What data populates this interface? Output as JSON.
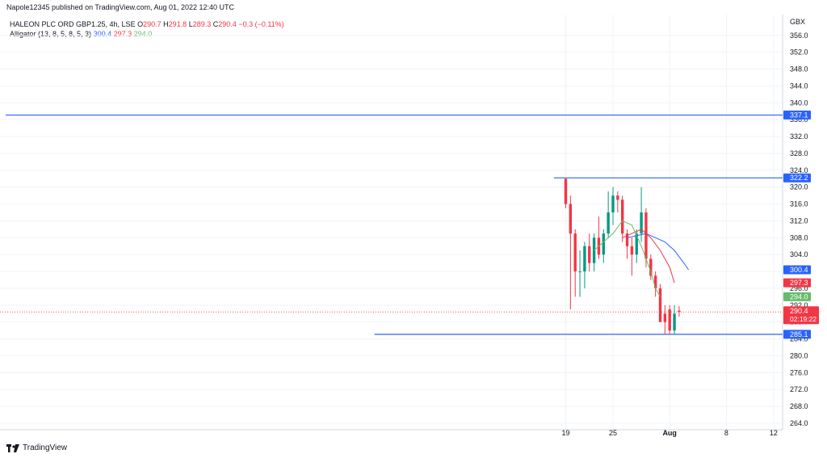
{
  "header": {
    "published": "Napole12345 published on TradingView.com, Aug 01, 2022 12:40 UTC"
  },
  "legend": {
    "symbol": "HALEON PLC ORD GBP1.25, 4h, LSE",
    "ohlc": {
      "o_label": "O",
      "o": "290.7",
      "h_label": "H",
      "h": "291.8",
      "l_label": "L",
      "l": "289.3",
      "c_label": "C",
      "c": "290.4",
      "change": "−0.3 (−0.11%)"
    },
    "indicator": "Alligator (13, 8, 5, 8, 5, 3)",
    "jaw": "300.4",
    "teeth": "297.3",
    "lips": "294.0"
  },
  "footer": {
    "brand": "TradingView"
  },
  "colors": {
    "up": "#089981",
    "down": "#f23645",
    "jaw": "#2962ff",
    "teeth": "#f23645",
    "lips": "#66bb6a",
    "hline": "#2962ff",
    "grid": "#f0f3fa"
  },
  "chart_data": {
    "type": "candlestick",
    "currency": "GBX",
    "ylim": [
      264,
      358
    ],
    "y_ticks": [
      "356.0",
      "352.0",
      "348.0",
      "344.0",
      "340.0",
      "336.0",
      "332.0",
      "328.0",
      "324.0",
      "320.0",
      "316.0",
      "312.0",
      "308.0",
      "304.0",
      "300.0",
      "296.0",
      "292.0",
      "288.0",
      "284.0",
      "280.0",
      "276.0",
      "272.0",
      "268.0",
      "264.0"
    ],
    "x_ticks": [
      {
        "label": "19",
        "idx": 0
      },
      {
        "label": "25",
        "idx": 10
      },
      {
        "label": "Aug",
        "idx": 22
      },
      {
        "label": "8",
        "idx": 34
      },
      {
        "label": "12",
        "idx": 44
      }
    ],
    "candles": [
      {
        "o": 322,
        "h": 322,
        "l": 315,
        "c": 316
      },
      {
        "o": 316,
        "h": 318,
        "l": 291,
        "c": 309
      },
      {
        "o": 309,
        "h": 310,
        "l": 294,
        "c": 300
      },
      {
        "o": 300,
        "h": 305,
        "l": 294,
        "c": 300
      },
      {
        "o": 300,
        "h": 307,
        "l": 296,
        "c": 306
      },
      {
        "o": 306,
        "h": 309,
        "l": 300,
        "c": 302
      },
      {
        "o": 302,
        "h": 309,
        "l": 300,
        "c": 308
      },
      {
        "o": 308,
        "h": 313,
        "l": 303,
        "c": 304
      },
      {
        "o": 304,
        "h": 310,
        "l": 302,
        "c": 309
      },
      {
        "o": 309,
        "h": 319,
        "l": 308,
        "c": 314
      },
      {
        "o": 314,
        "h": 320,
        "l": 311,
        "c": 318
      },
      {
        "o": 318,
        "h": 319,
        "l": 314,
        "c": 317
      },
      {
        "o": 317,
        "h": 318,
        "l": 307,
        "c": 309
      },
      {
        "o": 309,
        "h": 310,
        "l": 303,
        "c": 306
      },
      {
        "o": 306,
        "h": 308,
        "l": 299,
        "c": 304
      },
      {
        "o": 304,
        "h": 310,
        "l": 302,
        "c": 309
      },
      {
        "o": 309,
        "h": 320,
        "l": 307,
        "c": 314
      },
      {
        "o": 314,
        "h": 315,
        "l": 301,
        "c": 303
      },
      {
        "o": 303,
        "h": 304,
        "l": 298,
        "c": 299
      },
      {
        "o": 299,
        "h": 300,
        "l": 294,
        "c": 296
      },
      {
        "o": 296,
        "h": 297,
        "l": 288,
        "c": 288
      },
      {
        "o": 290,
        "h": 292,
        "l": 285,
        "c": 288
      },
      {
        "o": 291,
        "h": 292,
        "l": 285,
        "c": 286
      },
      {
        "o": 286,
        "h": 292,
        "l": 285,
        "c": 290
      },
      {
        "o": 290.7,
        "h": 291.8,
        "l": 289.3,
        "c": 290.4
      }
    ],
    "jaw_series": [
      {
        "i": 13,
        "v": 308
      },
      {
        "i": 15,
        "v": 308.5
      },
      {
        "i": 17,
        "v": 309
      },
      {
        "i": 19,
        "v": 308
      },
      {
        "i": 21,
        "v": 307
      },
      {
        "i": 23,
        "v": 305
      },
      {
        "i": 25,
        "v": 302
      },
      {
        "i": 26,
        "v": 300.4
      }
    ],
    "teeth_series": [
      {
        "i": 12,
        "v": 308
      },
      {
        "i": 14,
        "v": 309
      },
      {
        "i": 16,
        "v": 310
      },
      {
        "i": 18,
        "v": 308
      },
      {
        "i": 20,
        "v": 305
      },
      {
        "i": 22,
        "v": 301
      },
      {
        "i": 23,
        "v": 297.3
      }
    ],
    "lips_series": [
      {
        "i": 6,
        "v": 305
      },
      {
        "i": 8,
        "v": 307
      },
      {
        "i": 10,
        "v": 309
      },
      {
        "i": 12,
        "v": 312
      },
      {
        "i": 14,
        "v": 311
      },
      {
        "i": 16,
        "v": 306
      },
      {
        "i": 18,
        "v": 300
      },
      {
        "i": 19,
        "v": 296
      },
      {
        "i": 20,
        "v": 294
      }
    ],
    "hlines": [
      {
        "value": 337.1,
        "label": "337.1",
        "from_idx": -999
      },
      {
        "value": 322.2,
        "label": "322.2",
        "from_idx": -2
      },
      {
        "value": 285.1,
        "label": "285.1",
        "from_idx": -40
      }
    ],
    "price_tags": [
      {
        "value": 300.4,
        "label": "300.4",
        "color_key": "jaw"
      },
      {
        "value": 297.3,
        "label": "297.3",
        "color_key": "teeth"
      },
      {
        "value": 294.0,
        "label": "294.0",
        "color_key": "lips"
      }
    ],
    "last_price": {
      "value": 290.4,
      "label": "290.4",
      "countdown": "02:19:22"
    }
  }
}
